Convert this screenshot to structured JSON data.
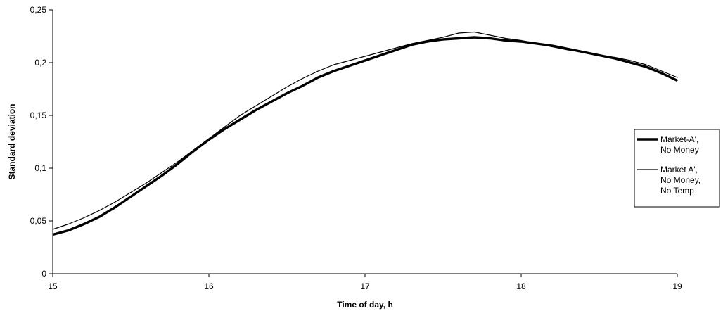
{
  "chart_data": {
    "type": "line",
    "title": "",
    "xlabel": "Time of day, h",
    "ylabel": "Standard deviation",
    "xlim": [
      15,
      19
    ],
    "ylim": [
      0,
      0.25
    ],
    "x_ticks": [
      15,
      16,
      17,
      18,
      19
    ],
    "x_tick_labels": [
      "15",
      "16",
      "17",
      "18",
      "19"
    ],
    "y_ticks": [
      0,
      0.05,
      0.1,
      0.15,
      0.2,
      0.25
    ],
    "y_tick_labels": [
      "0",
      "0,05",
      "0,1",
      "0,15",
      "0,2",
      "0,25"
    ],
    "grid": false,
    "legend_position": "right",
    "series": [
      {
        "name": "Market-A', No Money",
        "legend_lines": [
          "Market-A',",
          "No Money"
        ],
        "style": "thick",
        "color": "#000000",
        "x": [
          15.0,
          15.1,
          15.2,
          15.3,
          15.4,
          15.5,
          15.6,
          15.7,
          15.8,
          15.9,
          16.0,
          16.1,
          16.2,
          16.3,
          16.4,
          16.5,
          16.6,
          16.7,
          16.8,
          16.9,
          17.0,
          17.1,
          17.2,
          17.3,
          17.4,
          17.5,
          17.6,
          17.7,
          17.8,
          17.9,
          18.0,
          18.1,
          18.2,
          18.3,
          18.4,
          18.5,
          18.6,
          18.7,
          18.8,
          18.9,
          19.0
        ],
        "y": [
          0.037,
          0.041,
          0.047,
          0.054,
          0.063,
          0.073,
          0.083,
          0.093,
          0.104,
          0.116,
          0.127,
          0.137,
          0.146,
          0.155,
          0.163,
          0.171,
          0.178,
          0.186,
          0.192,
          0.197,
          0.202,
          0.207,
          0.212,
          0.217,
          0.22,
          0.222,
          0.223,
          0.224,
          0.223,
          0.221,
          0.22,
          0.218,
          0.216,
          0.213,
          0.21,
          0.207,
          0.204,
          0.2,
          0.196,
          0.19,
          0.183
        ]
      },
      {
        "name": "Market A', No Money, No Temp",
        "legend_lines": [
          "Market A',",
          "No Money,",
          "No Temp"
        ],
        "style": "thin",
        "color": "#000000",
        "x": [
          15.0,
          15.1,
          15.2,
          15.3,
          15.4,
          15.5,
          15.6,
          15.7,
          15.8,
          15.9,
          16.0,
          16.1,
          16.2,
          16.3,
          16.4,
          16.5,
          16.6,
          16.7,
          16.8,
          16.9,
          17.0,
          17.1,
          17.2,
          17.3,
          17.4,
          17.5,
          17.6,
          17.7,
          17.8,
          17.9,
          18.0,
          18.1,
          18.2,
          18.3,
          18.4,
          18.5,
          18.6,
          18.7,
          18.8,
          18.9,
          19.0
        ],
        "y": [
          0.042,
          0.047,
          0.053,
          0.06,
          0.068,
          0.077,
          0.086,
          0.096,
          0.106,
          0.117,
          0.128,
          0.139,
          0.15,
          0.159,
          0.168,
          0.177,
          0.185,
          0.192,
          0.198,
          0.202,
          0.206,
          0.21,
          0.214,
          0.218,
          0.221,
          0.224,
          0.228,
          0.229,
          0.226,
          0.223,
          0.221,
          0.218,
          0.215,
          0.212,
          0.21,
          0.207,
          0.205,
          0.202,
          0.198,
          0.192,
          0.186
        ]
      }
    ]
  }
}
